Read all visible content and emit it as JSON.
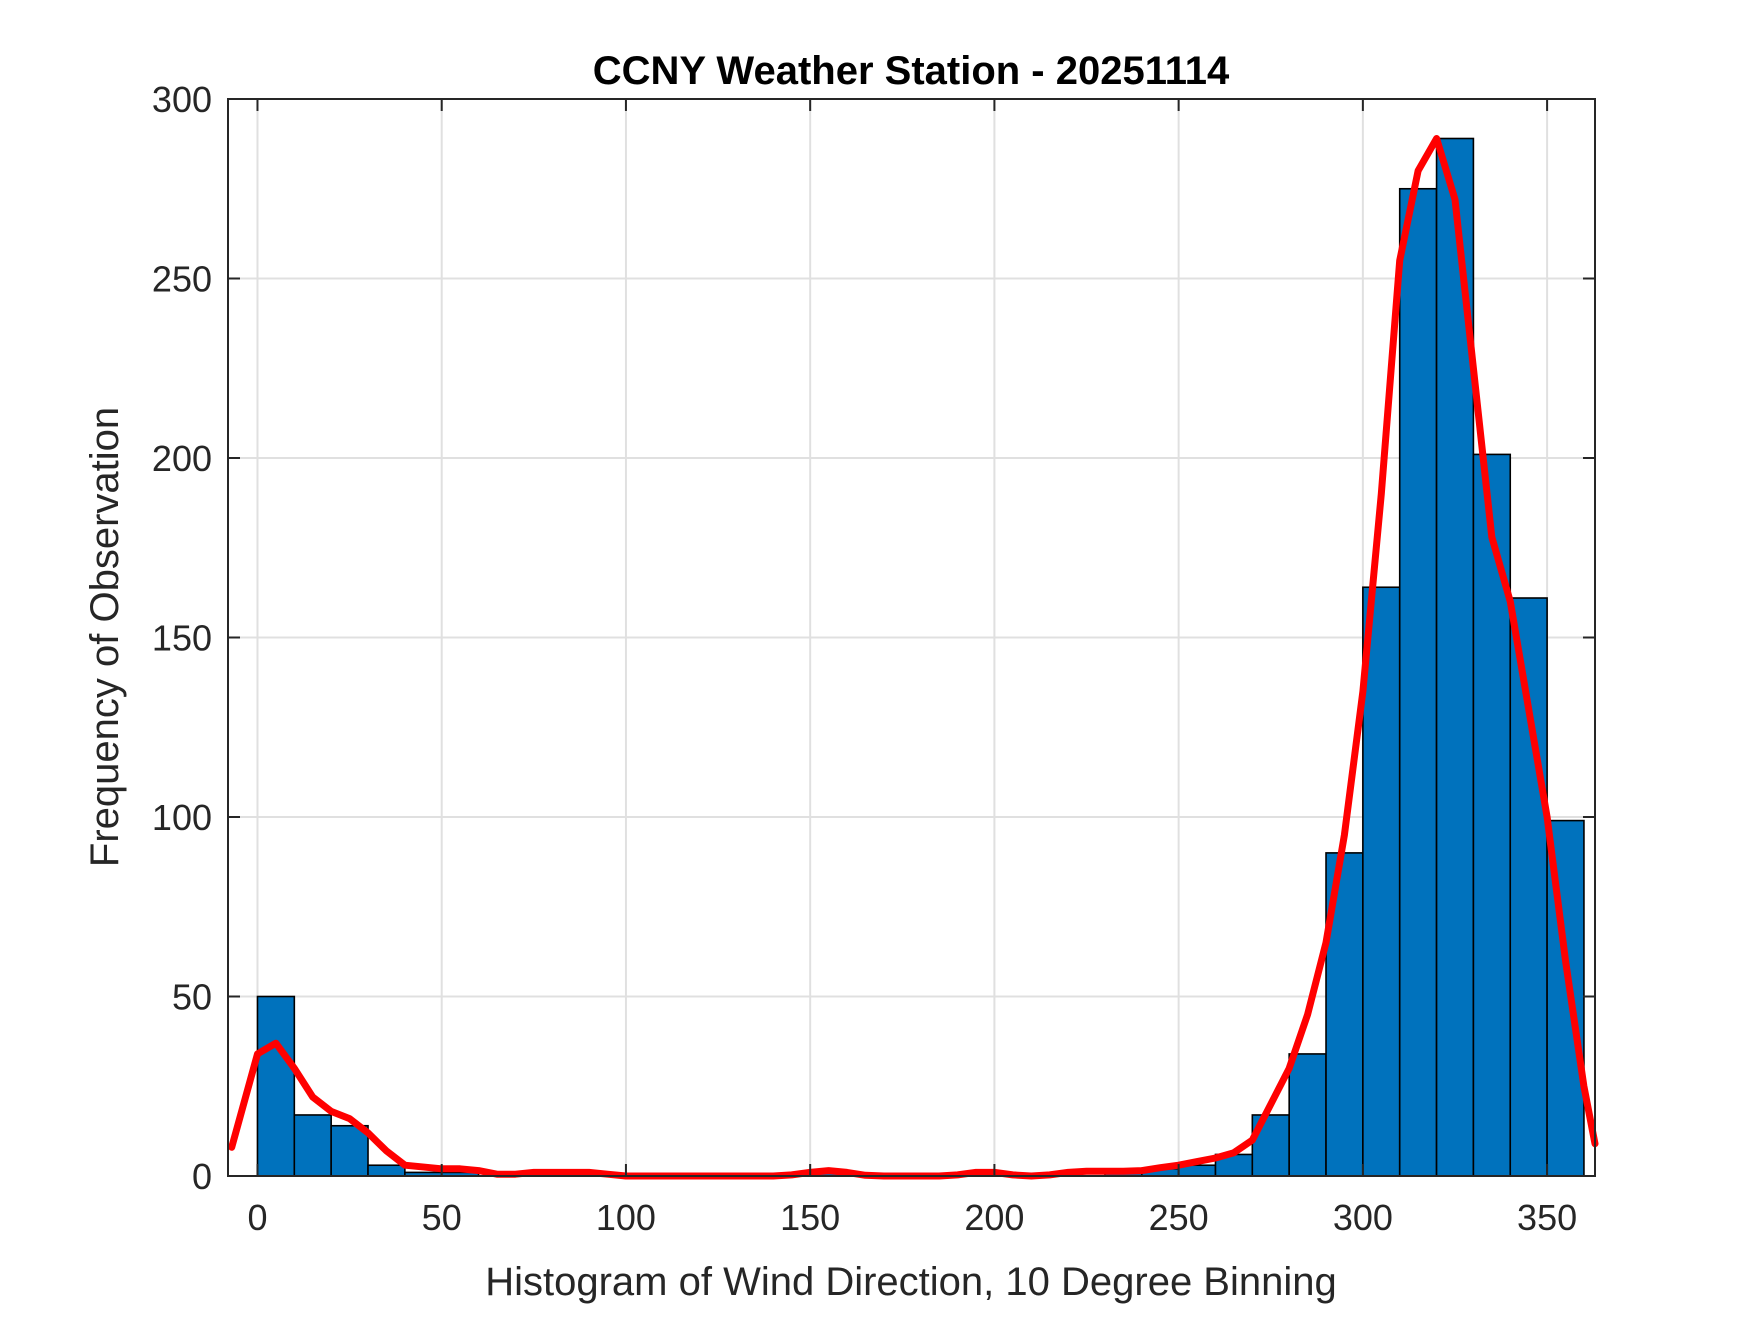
{
  "chart_data": {
    "type": "bar",
    "title": "CCNY Weather Station - 20251114",
    "xlabel": "Histogram of Wind Direction, 10 Degree Binning",
    "ylabel": "Frequency of Observation",
    "xlim": [
      -8,
      363
    ],
    "ylim": [
      0,
      300
    ],
    "xticks": [
      0,
      50,
      100,
      150,
      200,
      250,
      300,
      350
    ],
    "yticks": [
      0,
      50,
      100,
      150,
      200,
      250,
      300
    ],
    "grid": true,
    "bin_width": 10,
    "bars": [
      {
        "x0": 0,
        "x1": 10,
        "value": 50
      },
      {
        "x0": 10,
        "x1": 20,
        "value": 17
      },
      {
        "x0": 20,
        "x1": 30,
        "value": 14
      },
      {
        "x0": 30,
        "x1": 40,
        "value": 3
      },
      {
        "x0": 40,
        "x1": 50,
        "value": 1
      },
      {
        "x0": 50,
        "x1": 60,
        "value": 1
      },
      {
        "x0": 60,
        "x1": 70,
        "value": 0
      },
      {
        "x0": 70,
        "x1": 80,
        "value": 0
      },
      {
        "x0": 80,
        "x1": 90,
        "value": 0
      },
      {
        "x0": 90,
        "x1": 100,
        "value": 0
      },
      {
        "x0": 100,
        "x1": 110,
        "value": 0
      },
      {
        "x0": 110,
        "x1": 120,
        "value": 0
      },
      {
        "x0": 120,
        "x1": 130,
        "value": 0
      },
      {
        "x0": 130,
        "x1": 140,
        "value": 0
      },
      {
        "x0": 140,
        "x1": 150,
        "value": 0
      },
      {
        "x0": 150,
        "x1": 160,
        "value": 1
      },
      {
        "x0": 160,
        "x1": 170,
        "value": 0
      },
      {
        "x0": 170,
        "x1": 180,
        "value": 0
      },
      {
        "x0": 180,
        "x1": 190,
        "value": 0
      },
      {
        "x0": 190,
        "x1": 200,
        "value": 0
      },
      {
        "x0": 200,
        "x1": 210,
        "value": 0
      },
      {
        "x0": 210,
        "x1": 220,
        "value": 0
      },
      {
        "x0": 220,
        "x1": 230,
        "value": 0
      },
      {
        "x0": 230,
        "x1": 240,
        "value": 1
      },
      {
        "x0": 240,
        "x1": 250,
        "value": 2
      },
      {
        "x0": 250,
        "x1": 260,
        "value": 3
      },
      {
        "x0": 260,
        "x1": 270,
        "value": 6
      },
      {
        "x0": 270,
        "x1": 280,
        "value": 17
      },
      {
        "x0": 280,
        "x1": 290,
        "value": 34
      },
      {
        "x0": 290,
        "x1": 300,
        "value": 90
      },
      {
        "x0": 300,
        "x1": 310,
        "value": 164
      },
      {
        "x0": 310,
        "x1": 320,
        "value": 275
      },
      {
        "x0": 320,
        "x1": 330,
        "value": 289
      },
      {
        "x0": 330,
        "x1": 340,
        "value": 201
      },
      {
        "x0": 340,
        "x1": 350,
        "value": 161
      },
      {
        "x0": 350,
        "x1": 360,
        "value": 99
      }
    ],
    "fit_curve": {
      "x": [
        -7,
        0,
        5,
        10,
        15,
        20,
        25,
        30,
        35,
        40,
        50,
        55,
        60,
        65,
        70,
        75,
        80,
        85,
        90,
        95,
        100,
        110,
        120,
        130,
        140,
        145,
        150,
        155,
        160,
        165,
        170,
        175,
        180,
        185,
        190,
        195,
        200,
        205,
        210,
        215,
        220,
        225,
        230,
        235,
        240,
        245,
        250,
        255,
        260,
        265,
        270,
        275,
        280,
        285,
        290,
        295,
        300,
        305,
        310,
        315,
        320,
        325,
        330,
        335,
        340,
        345,
        350,
        355,
        360,
        363
      ],
      "y": [
        8,
        34,
        37,
        30,
        22,
        18,
        16,
        12,
        7,
        3,
        2,
        2,
        1.5,
        0.5,
        0.5,
        1,
        1,
        1,
        1,
        0.5,
        0,
        0,
        0,
        0,
        0,
        0.3,
        1,
        1.5,
        1,
        0.2,
        0,
        0,
        0,
        0,
        0.3,
        1,
        1,
        0.3,
        0,
        0.3,
        1,
        1.3,
        1.3,
        1.3,
        1.5,
        2.3,
        3,
        4,
        5,
        6.5,
        10,
        20,
        30,
        45,
        65,
        95,
        135,
        190,
        255,
        280,
        289,
        272,
        225,
        178,
        160,
        130,
        100,
        60,
        25,
        9
      ],
      "color": "#ff0000"
    },
    "colors": {
      "bar_fill": "#0072bd",
      "bar_edge": "#000000",
      "grid": "#e0e0e0",
      "axis": "#262626"
    }
  }
}
